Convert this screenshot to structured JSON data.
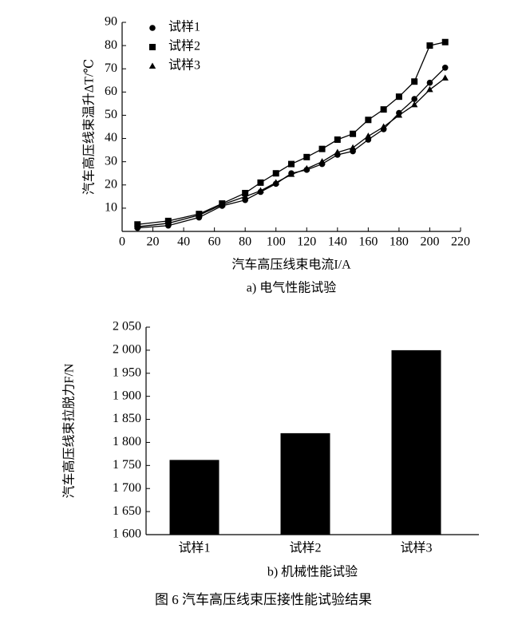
{
  "chart_data": [
    {
      "type": "line",
      "xlabel": "汽车高压线束电流I/A",
      "ylabel": "汽车高压线束温升ΔT/℃",
      "caption": "a) 电气性能试验",
      "x": [
        10,
        30,
        50,
        65,
        80,
        90,
        100,
        110,
        120,
        130,
        140,
        150,
        160,
        170,
        180,
        190,
        200,
        210
      ],
      "series": [
        {
          "name": "试样1",
          "color": "#000000",
          "marker": "circle",
          "values": [
            1.5,
            2.5,
            6,
            11,
            13.5,
            17,
            20.5,
            25,
            26.5,
            29,
            33,
            34.5,
            39.5,
            44,
            51,
            57,
            64,
            70.5
          ]
        },
        {
          "name": "试样2",
          "color": "#000000",
          "marker": "square",
          "values": [
            3,
            4.5,
            7.5,
            12,
            16.5,
            21,
            25,
            29,
            32,
            35.5,
            39.5,
            42,
            48,
            52.5,
            58,
            64.5,
            80,
            81.5
          ]
        },
        {
          "name": "试样3",
          "color": "#000000",
          "marker": "triangle",
          "values": [
            2,
            3.5,
            7,
            11.5,
            15,
            17.5,
            21,
            24.5,
            27,
            30,
            34,
            36,
            41,
            45,
            50,
            54.5,
            61,
            66
          ]
        }
      ],
      "xlim": [
        0,
        220
      ],
      "xticks": [
        0,
        20,
        40,
        60,
        80,
        100,
        120,
        140,
        160,
        180,
        200,
        220
      ],
      "ylim": [
        0,
        90
      ],
      "yticks": [
        10,
        20,
        30,
        40,
        50,
        60,
        70,
        80,
        90
      ],
      "legend": "upper-left"
    },
    {
      "type": "bar",
      "ylabel": "汽车高压线束拉脱力F/N",
      "caption": "b) 机械性能试验",
      "categories": [
        "试样1",
        "试样2",
        "试样3"
      ],
      "values": [
        1762,
        1820,
        2000
      ],
      "color": "#000000",
      "ylim": [
        1600,
        2050
      ],
      "yticks": [
        {
          "value": 1600,
          "label": "1 600"
        },
        {
          "value": 1650,
          "label": "1 650"
        },
        {
          "value": 1700,
          "label": "1 700"
        },
        {
          "value": 1750,
          "label": "1 750"
        },
        {
          "value": 1800,
          "label": "1 800"
        },
        {
          "value": 1850,
          "label": "1 850"
        },
        {
          "value": 1900,
          "label": "1 900"
        },
        {
          "value": 1950,
          "label": "1 950"
        },
        {
          "value": 2000,
          "label": "2 000"
        },
        {
          "value": 2050,
          "label": "2 050"
        }
      ]
    }
  ],
  "figure_caption": "图 6   汽车高压线束压接性能试验结果"
}
